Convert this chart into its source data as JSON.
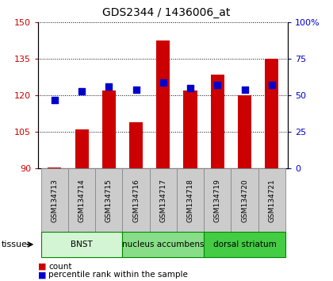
{
  "title": "GDS2344 / 1436006_at",
  "samples": [
    "GSM134713",
    "GSM134714",
    "GSM134715",
    "GSM134716",
    "GSM134717",
    "GSM134718",
    "GSM134719",
    "GSM134720",
    "GSM134721"
  ],
  "counts": [
    90.3,
    106.0,
    122.0,
    109.0,
    142.5,
    122.0,
    128.5,
    120.0,
    135.0
  ],
  "percentiles": [
    47,
    53,
    56,
    54,
    59,
    55,
    57,
    54,
    57
  ],
  "baseline": 90,
  "ylim_left": [
    90,
    150
  ],
  "ylim_right": [
    0,
    100
  ],
  "yticks_left": [
    90,
    105,
    120,
    135,
    150
  ],
  "yticks_right": [
    0,
    25,
    50,
    75,
    100
  ],
  "bar_color": "#cc0000",
  "dot_color": "#0000cc",
  "tissue_groups": [
    {
      "label": "BNST",
      "start": 0,
      "end": 3,
      "color": "#d4f5d4"
    },
    {
      "label": "nucleus accumbens",
      "start": 3,
      "end": 6,
      "color": "#88dd88"
    },
    {
      "label": "dorsal striatum",
      "start": 6,
      "end": 9,
      "color": "#44cc44"
    }
  ],
  "tissue_label": "tissue",
  "legend_count_label": "count",
  "legend_pct_label": "percentile rank within the sample",
  "bar_width": 0.5,
  "title_fontsize": 10,
  "tick_fontsize": 8,
  "sample_box_color": "#cccccc",
  "sample_box_edge": "#888888"
}
